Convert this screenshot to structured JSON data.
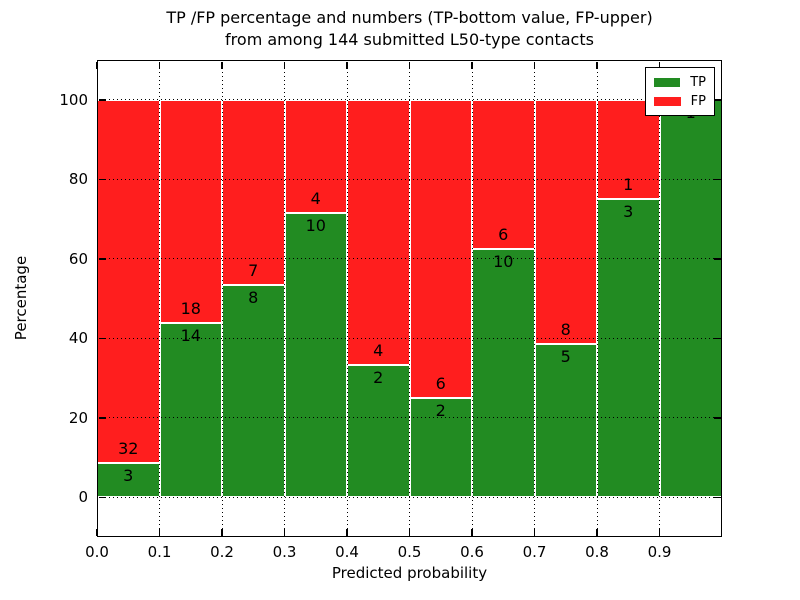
{
  "figure": {
    "title_lines": [
      "TP /FP percentage and numbers (TP-bottom value, FP-upper)",
      "from among 144 submitted L50-type contacts"
    ]
  },
  "chart_data": {
    "type": "bar",
    "stacked": true,
    "title": "TP /FP percentage and numbers (TP-bottom value, FP-upper) from among 144 submitted L50-type contacts",
    "xlabel": "Predicted probability",
    "ylabel": "Percentage",
    "xlim": [
      0.0,
      1.0
    ],
    "ylim": [
      -10,
      110
    ],
    "bin_width": 0.1,
    "bin_edges": [
      0.0,
      0.1,
      0.2,
      0.3,
      0.4,
      0.5,
      0.6,
      0.7,
      0.8,
      0.9,
      1.0
    ],
    "xtick_labels": [
      "0.0",
      "0.1",
      "0.2",
      "0.3",
      "0.4",
      "0.5",
      "0.6",
      "0.7",
      "0.8",
      "0.9"
    ],
    "ytick_values": [
      0,
      20,
      40,
      60,
      80,
      100
    ],
    "ytick_labels": [
      "0",
      "20",
      "40",
      "60",
      "80",
      "100"
    ],
    "grid": true,
    "grid_style": "dotted",
    "total_contacts": 144,
    "legend": {
      "position": "upper right",
      "entries": [
        {
          "label": "TP",
          "color": "#228b22"
        },
        {
          "label": "FP",
          "color": "#ff1e1e"
        }
      ]
    },
    "categories": [
      "0.0-0.1",
      "0.1-0.2",
      "0.2-0.3",
      "0.3-0.4",
      "0.4-0.5",
      "0.5-0.6",
      "0.6-0.7",
      "0.7-0.8",
      "0.8-0.9",
      "0.9-1.0"
    ],
    "series": [
      {
        "name": "TP",
        "color": "#228b22",
        "counts": [
          3,
          14,
          8,
          10,
          2,
          2,
          10,
          5,
          3,
          1
        ],
        "percent": [
          8.57,
          43.75,
          53.33,
          71.43,
          33.33,
          25.0,
          62.5,
          38.46,
          75.0,
          100.0
        ]
      },
      {
        "name": "FP",
        "color": "#ff1e1e",
        "counts": [
          32,
          18,
          7,
          4,
          4,
          6,
          6,
          8,
          1,
          0
        ],
        "percent": [
          91.43,
          56.25,
          46.67,
          28.57,
          66.67,
          75.0,
          37.5,
          61.54,
          25.0,
          0.0
        ]
      }
    ]
  }
}
